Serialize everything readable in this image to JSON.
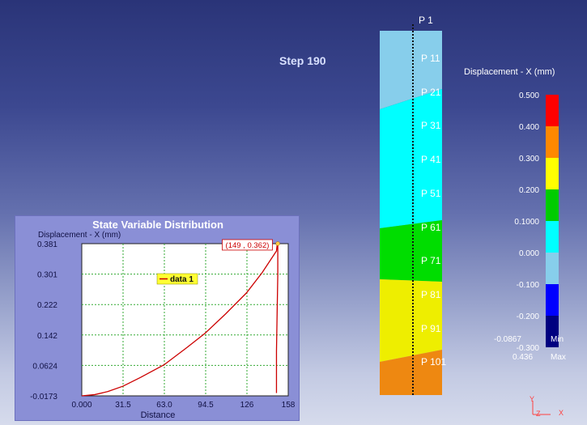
{
  "step": {
    "label": "Step 190"
  },
  "column": {
    "probes": [
      "P 1",
      "P 11",
      "P 21",
      "P 31",
      "P 41",
      "P 51",
      "P 61",
      "P 71",
      "P 81",
      "P 91",
      "P 101"
    ]
  },
  "legend": {
    "title": "Displacement - X (mm)",
    "colors": [
      "#ff0000",
      "#ff8800",
      "#ffff00",
      "#00cc00",
      "#00ffff",
      "#87ceeb",
      "#0000ff",
      "#000080"
    ],
    "ticks": [
      "0.500",
      "0.400",
      "0.300",
      "0.200",
      "0.1000",
      "0.000",
      "-0.100",
      "-0.200",
      "-0.300"
    ],
    "min_value": "-0.0867",
    "min_label": "Min",
    "max_value": "0.436",
    "max_label": "Max"
  },
  "axis_triad": {
    "y_label": "Y",
    "z_label": "Z",
    "x_label": "X"
  },
  "plot": {
    "title": "State Variable Distribution",
    "ylabel": "Displacement - X (mm)",
    "xlabel": "Distance",
    "legend_label": "data 1",
    "tooltip": "(149 , 0.362)"
  },
  "chart_data": {
    "type": "line",
    "title": "State Variable Distribution",
    "xlabel": "Distance",
    "ylabel": "Displacement - X (mm)",
    "xlim": [
      0,
      158
    ],
    "ylim": [
      -0.0173,
      0.381
    ],
    "xticks": [
      "0.000",
      "31.5",
      "63.0",
      "94.5",
      "126",
      "158"
    ],
    "yticks": [
      "-0.0173",
      "0.0624",
      "0.142",
      "0.222",
      "0.301",
      "0.381"
    ],
    "grid": true,
    "legend_position": "top-center",
    "series": [
      {
        "name": "data 1",
        "color": "#cc0000",
        "x": [
          0,
          10,
          20,
          31.5,
          45,
          63,
          80,
          94.5,
          110,
          126,
          138,
          149,
          149.5,
          150,
          150,
          149,
          149
        ],
        "y": [
          -0.0173,
          -0.014,
          -0.006,
          0.008,
          0.031,
          0.064,
          0.108,
          0.147,
          0.197,
          0.252,
          0.305,
          0.362,
          0.378,
          0.381,
          0.3,
          0.1,
          -0.01
        ]
      }
    ],
    "annotation": {
      "x": 149,
      "y": 0.362,
      "text": "(149 , 0.362)"
    }
  }
}
